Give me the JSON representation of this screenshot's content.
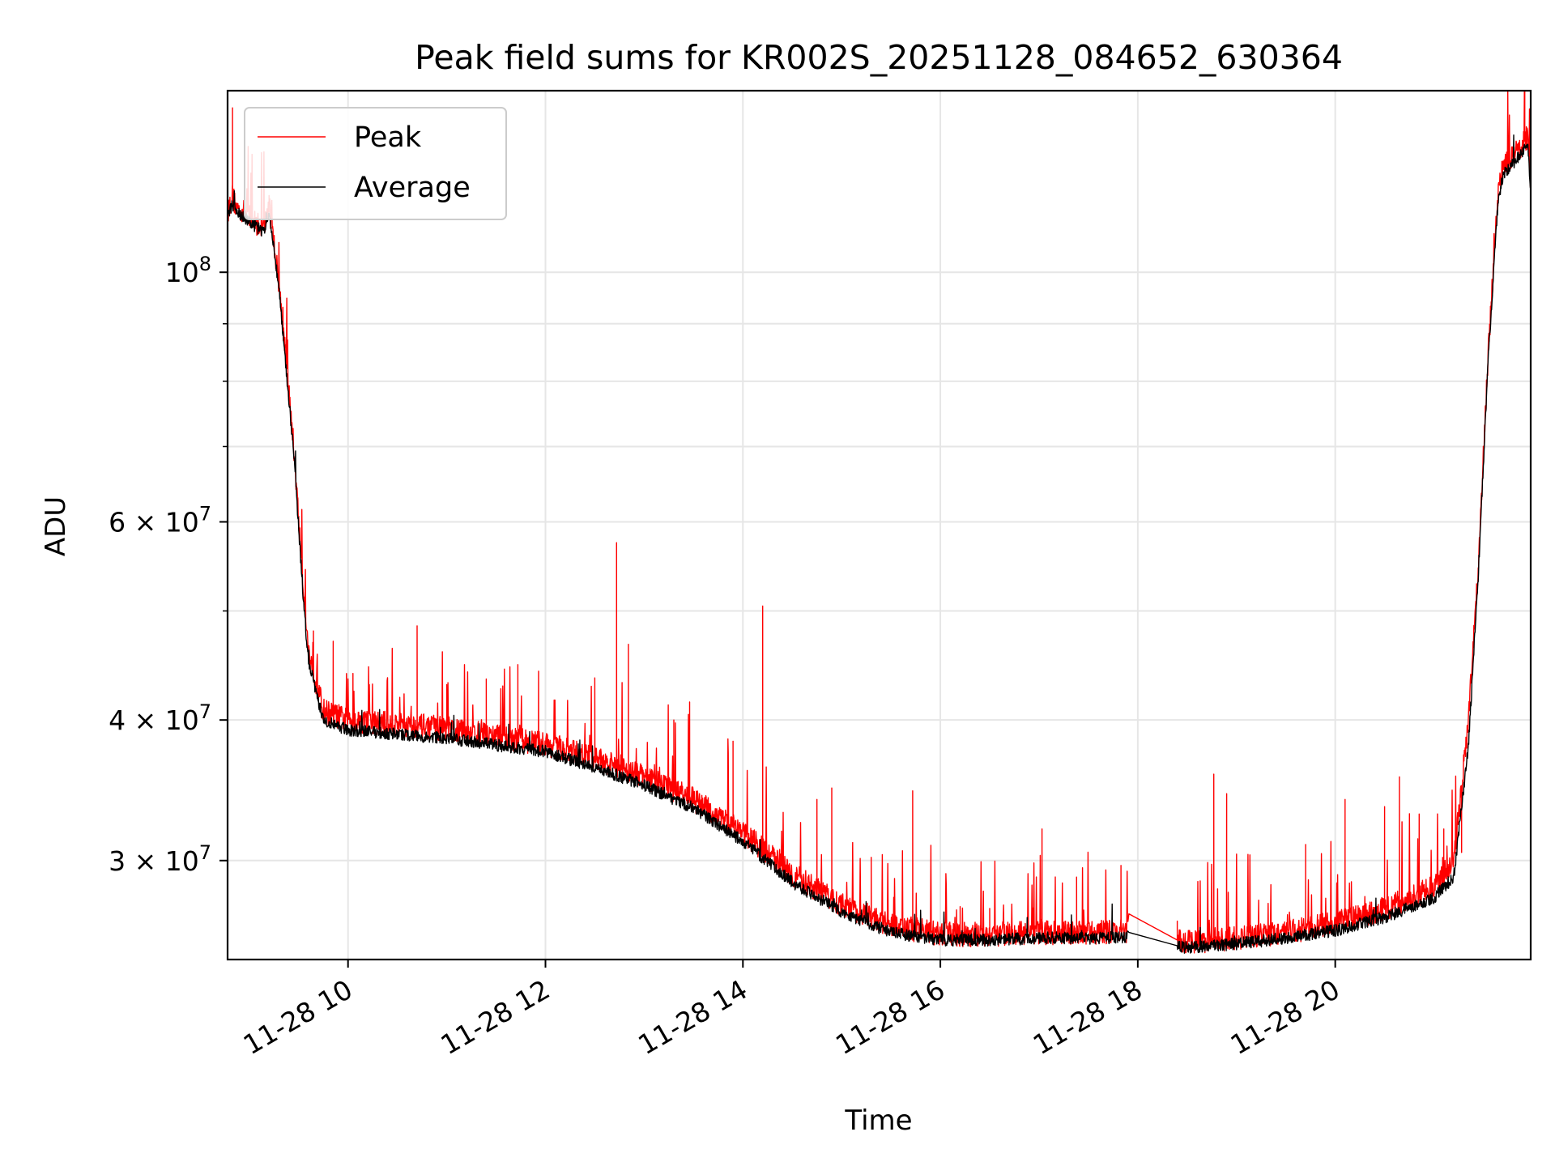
{
  "chart_data": {
    "type": "line",
    "title": "Peak field sums for KR002S_20251128_084652_630364",
    "xlabel": "Time",
    "ylabel": "ADU",
    "yscale": "log",
    "grid": true,
    "legend_position": "top-left",
    "xlim": [
      8.78,
      21.98
    ],
    "ylim": [
      24500000,
      145000000
    ],
    "x_unit": "hours on 2025-11-28",
    "x_ticks": [
      {
        "value": 10,
        "label": "11-28 10"
      },
      {
        "value": 12,
        "label": "11-28 12"
      },
      {
        "value": 14,
        "label": "11-28 14"
      },
      {
        "value": 16,
        "label": "11-28 16"
      },
      {
        "value": 18,
        "label": "11-28 18"
      },
      {
        "value": 20,
        "label": "11-28 20"
      }
    ],
    "y_ticks": [
      {
        "value": 100000000,
        "mant": "",
        "base": "10",
        "exp": "8"
      },
      {
        "value": 60000000,
        "mant": "6 × ",
        "base": "10",
        "exp": "7"
      },
      {
        "value": 40000000,
        "mant": "4 × ",
        "base": "10",
        "exp": "7"
      },
      {
        "value": 30000000,
        "mant": "3 × ",
        "base": "10",
        "exp": "7"
      }
    ],
    "y_minor_ticks": [
      50000000,
      70000000,
      80000000,
      90000000
    ],
    "series": [
      {
        "name": "Peak",
        "color": "#ff0000",
        "baseline": [
          [
            8.78,
            113000000
          ],
          [
            8.83,
            117000000
          ],
          [
            8.87,
            114000000
          ],
          [
            8.95,
            113000000
          ],
          [
            9.05,
            111000000
          ],
          [
            9.15,
            109500000
          ],
          [
            9.2,
            115000000
          ],
          [
            9.3,
            98000000
          ],
          [
            9.45,
            70000000
          ],
          [
            9.55,
            52000000
          ],
          [
            9.6,
            46000000
          ],
          [
            9.75,
            40800000
          ],
          [
            10.0,
            40000000
          ],
          [
            11.0,
            39300000
          ],
          [
            12.0,
            38100000
          ],
          [
            12.5,
            37000000
          ],
          [
            13.0,
            35600000
          ],
          [
            13.5,
            34000000
          ],
          [
            14.0,
            31800000
          ],
          [
            14.5,
            29200000
          ],
          [
            15.0,
            27400000
          ],
          [
            15.5,
            26300000
          ],
          [
            16.0,
            25800000
          ],
          [
            16.5,
            25800000
          ],
          [
            17.0,
            25900000
          ],
          [
            17.5,
            25900000
          ],
          [
            17.9,
            25950000
          ],
          [
            17.91,
            26900000
          ],
          [
            18.4,
            25500000
          ],
          [
            18.5,
            25400000
          ],
          [
            19.0,
            25600000
          ],
          [
            19.5,
            25900000
          ],
          [
            20.0,
            26400000
          ],
          [
            20.5,
            27200000
          ],
          [
            21.0,
            28400000
          ],
          [
            21.2,
            30000000
          ],
          [
            21.35,
            40000000
          ],
          [
            21.45,
            55000000
          ],
          [
            21.55,
            85000000
          ],
          [
            21.65,
            118000000
          ],
          [
            21.7,
            124000000
          ],
          [
            21.8,
            127000000
          ],
          [
            21.9,
            130000000
          ],
          [
            21.95,
            132000000
          ],
          [
            21.98,
            120000000
          ]
        ],
        "spikes": [
          [
            8.83,
            140000000
          ],
          [
            9.2,
            117000000
          ],
          [
            9.65,
            48000000
          ],
          [
            9.85,
            47000000
          ],
          [
            10.05,
            44000000
          ],
          [
            10.7,
            48500000
          ],
          [
            11.0,
            43000000
          ],
          [
            11.4,
            43500000
          ],
          [
            11.72,
            44800000
          ],
          [
            11.93,
            44200000
          ],
          [
            12.5,
            43600000
          ],
          [
            12.72,
            57500000
          ],
          [
            12.84,
            46700000
          ],
          [
            13.3,
            40000000
          ],
          [
            13.46,
            41500000
          ],
          [
            13.9,
            38300000
          ],
          [
            14.2,
            50500000
          ],
          [
            14.75,
            34000000
          ],
          [
            14.9,
            34800000
          ],
          [
            15.3,
            30200000
          ],
          [
            15.72,
            34600000
          ],
          [
            16.2,
            27300000
          ],
          [
            16.5,
            27200000
          ],
          [
            17.03,
            32000000
          ],
          [
            17.38,
            29000000
          ],
          [
            17.83,
            29700000
          ],
          [
            18.4,
            26500000
          ],
          [
            18.77,
            35800000
          ],
          [
            18.9,
            34400000
          ],
          [
            19.7,
            31000000
          ],
          [
            20.1,
            34000000
          ],
          [
            20.5,
            33500000
          ],
          [
            20.65,
            35600000
          ],
          [
            20.85,
            33000000
          ],
          [
            21.1,
            32000000
          ],
          [
            21.28,
            30500000
          ],
          [
            21.92,
            146000000
          ]
        ]
      },
      {
        "name": "Average",
        "color": "#000000",
        "baseline": [
          [
            8.78,
            112000000
          ],
          [
            8.83,
            115000000
          ],
          [
            8.87,
            113000000
          ],
          [
            8.95,
            112000000
          ],
          [
            9.05,
            110000000
          ],
          [
            9.15,
            108500000
          ],
          [
            9.2,
            113000000
          ],
          [
            9.3,
            97000000
          ],
          [
            9.45,
            69000000
          ],
          [
            9.55,
            51000000
          ],
          [
            9.6,
            45000000
          ],
          [
            9.75,
            40000000
          ],
          [
            10.0,
            39200000
          ],
          [
            11.0,
            38500000
          ],
          [
            12.0,
            37500000
          ],
          [
            12.5,
            36300000
          ],
          [
            13.0,
            35000000
          ],
          [
            13.5,
            33400000
          ],
          [
            14.0,
            31200000
          ],
          [
            14.5,
            28700000
          ],
          [
            15.0,
            27000000
          ],
          [
            15.5,
            25900000
          ],
          [
            16.0,
            25500000
          ],
          [
            16.5,
            25500000
          ],
          [
            17.0,
            25600000
          ],
          [
            17.5,
            25600000
          ],
          [
            17.9,
            25650000
          ],
          [
            17.91,
            25900000
          ],
          [
            18.4,
            25200000
          ],
          [
            18.5,
            25100000
          ],
          [
            19.0,
            25300000
          ],
          [
            19.5,
            25600000
          ],
          [
            20.0,
            26000000
          ],
          [
            20.5,
            26700000
          ],
          [
            21.0,
            27800000
          ],
          [
            21.2,
            29000000
          ],
          [
            21.35,
            38000000
          ],
          [
            21.45,
            54000000
          ],
          [
            21.55,
            84000000
          ],
          [
            21.65,
            116000000
          ],
          [
            21.7,
            122000000
          ],
          [
            21.8,
            125000000
          ],
          [
            21.9,
            128000000
          ],
          [
            21.95,
            130000000
          ],
          [
            21.98,
            118000000
          ]
        ]
      }
    ]
  }
}
